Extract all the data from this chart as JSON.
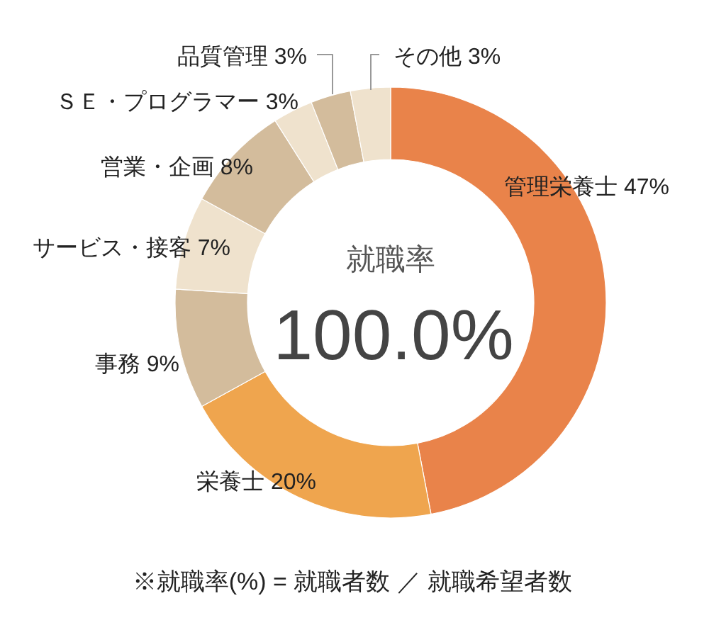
{
  "chart_data": {
    "type": "donut",
    "categories": [
      "管理栄養士",
      "栄養士",
      "事務",
      "サービス・接客",
      "営業・企画",
      "ＳＥ・プログラマー",
      "品質管理",
      "その他"
    ],
    "values": [
      47,
      20,
      9,
      7,
      8,
      3,
      3,
      3
    ],
    "value_labels": [
      "47%",
      "20%",
      "9%",
      "7%",
      "8%",
      "3%",
      "3%",
      "3%"
    ],
    "colors": [
      "#e9834a",
      "#efa54e",
      "#d3bc9c",
      "#efe2cd",
      "#d3bc9c",
      "#efe2cd",
      "#d3bc9c",
      "#efe2cd"
    ],
    "annotations": [
      "就職率",
      "100.0%",
      "※就職率(%) = 就職者数 ／ 就職希望者数"
    ]
  }
}
